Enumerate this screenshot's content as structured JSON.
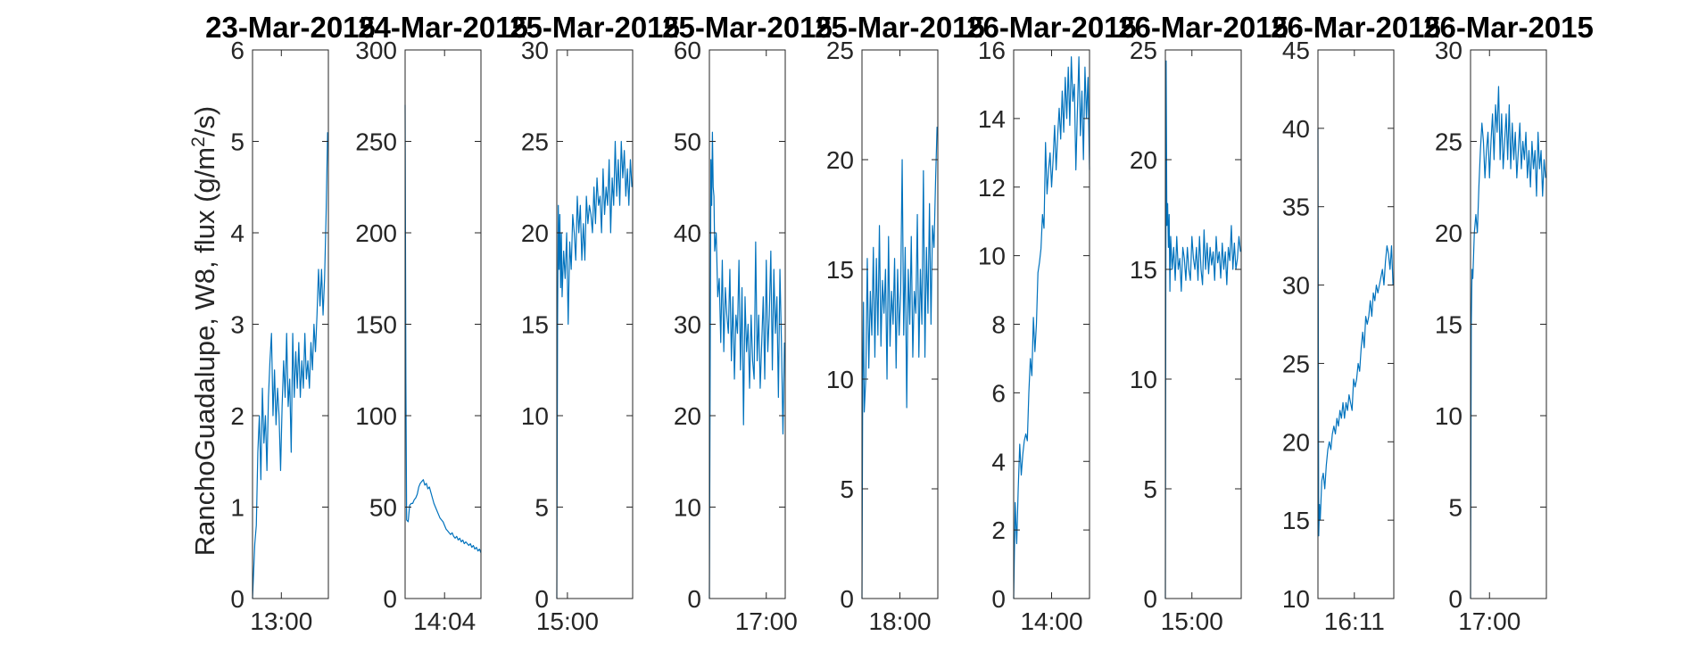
{
  "figure": {
    "ylabel_main": "RanchoGuadalupe, W8, flux (g/m",
    "ylabel_sup": "2",
    "ylabel_end": "/s)",
    "line_color": "#0072BD"
  },
  "chart_data": [
    {
      "type": "line",
      "title": "23-Mar-2015",
      "ylim": [
        0,
        6
      ],
      "yticks": [
        "0",
        "1",
        "2",
        "3",
        "4",
        "5",
        "6"
      ],
      "xlim": [
        0,
        100
      ],
      "xticks": [
        {
          "x": 38,
          "label": "13:00"
        }
      ],
      "x": [
        0,
        3,
        5,
        7,
        9,
        11,
        13,
        15,
        17,
        19,
        21,
        23,
        25,
        27,
        29,
        31,
        33,
        35,
        37,
        39,
        41,
        43,
        45,
        47,
        49,
        51,
        53,
        55,
        57,
        59,
        61,
        63,
        65,
        67,
        69,
        71,
        73,
        75,
        77,
        79,
        81,
        83,
        85,
        87,
        89,
        91,
        93,
        95,
        97,
        99
      ],
      "y": [
        0,
        0.6,
        0.8,
        1.6,
        2.0,
        1.3,
        2.3,
        1.7,
        2.0,
        1.4,
        2.2,
        2.6,
        2.9,
        2.0,
        2.5,
        1.9,
        2.3,
        2.0,
        1.4,
        2.1,
        2.6,
        2.2,
        2.9,
        2.1,
        2.4,
        1.6,
        2.9,
        2.2,
        2.7,
        2.3,
        2.8,
        2.2,
        2.6,
        2.3,
        2.9,
        2.4,
        2.6,
        2.3,
        2.8,
        2.5,
        3.0,
        2.7,
        3.1,
        3.6,
        3.2,
        3.6,
        3.1,
        3.5,
        4.2,
        5.1
      ]
    },
    {
      "type": "line",
      "title": "24-Mar-2015",
      "ylim": [
        0,
        300
      ],
      "yticks": [
        "0",
        "50",
        "100",
        "150",
        "200",
        "250",
        "300"
      ],
      "xlim": [
        0,
        100
      ],
      "xticks": [
        {
          "x": 52,
          "label": "14:04"
        }
      ],
      "x": [
        0,
        1,
        2,
        4,
        6,
        8,
        10,
        12,
        14,
        16,
        18,
        20,
        22,
        24,
        26,
        28,
        30,
        32,
        34,
        36,
        38,
        40,
        42,
        44,
        46,
        48,
        50,
        52,
        54,
        56,
        58,
        60,
        62,
        64,
        66,
        68,
        70,
        72,
        74,
        76,
        78,
        80,
        82,
        84,
        86,
        88,
        90,
        92,
        94,
        96,
        98,
        100
      ],
      "y": [
        270,
        120,
        43,
        42,
        51,
        52,
        52,
        54,
        55,
        57,
        61,
        63,
        64,
        65,
        62,
        63,
        60,
        61,
        58,
        55,
        52,
        50,
        48,
        46,
        44,
        43,
        42,
        40,
        38,
        37,
        36,
        35,
        36,
        34,
        33,
        34,
        32,
        33,
        31,
        32,
        30,
        31,
        30,
        29,
        30,
        28,
        29,
        27,
        28,
        26,
        27,
        25
      ]
    },
    {
      "type": "line",
      "title": "25-Mar-2015",
      "ylim": [
        0,
        30
      ],
      "yticks": [
        "0",
        "5",
        "10",
        "15",
        "20",
        "25",
        "30"
      ],
      "xlim": [
        0,
        100
      ],
      "xticks": [
        {
          "x": 14,
          "label": "15:00"
        }
      ],
      "x": [
        0,
        1,
        2,
        3,
        4,
        5,
        6,
        7,
        9,
        11,
        13,
        15,
        17,
        19,
        21,
        23,
        25,
        27,
        29,
        31,
        33,
        35,
        37,
        39,
        41,
        43,
        45,
        47,
        49,
        51,
        53,
        55,
        57,
        59,
        61,
        63,
        65,
        67,
        69,
        71,
        73,
        75,
        77,
        79,
        81,
        83,
        85,
        87,
        89,
        91,
        93,
        95,
        97,
        99
      ],
      "y": [
        0,
        15,
        21.5,
        18,
        21,
        17,
        20,
        16.5,
        19,
        17.5,
        20,
        15,
        19.5,
        18,
        21,
        20,
        18.5,
        22,
        20,
        21.5,
        18.5,
        20.5,
        18.5,
        22,
        20.5,
        21.5,
        21,
        20,
        22.5,
        20.5,
        23,
        21.5,
        22,
        20,
        23.5,
        21,
        22.5,
        21.5,
        24,
        20,
        23,
        21.5,
        25,
        22,
        24,
        21.5,
        25,
        23,
        24.5,
        22,
        23.5,
        21.5,
        24,
        22.5
      ]
    },
    {
      "type": "line",
      "title": "25-Mar-2015",
      "ylim": [
        0,
        60
      ],
      "yticks": [
        "0",
        "10",
        "20",
        "30",
        "40",
        "50",
        "60"
      ],
      "xlim": [
        0,
        100
      ],
      "xticks": [
        {
          "x": 75,
          "label": "17:00"
        }
      ],
      "x": [
        0,
        1,
        2,
        3,
        4,
        5,
        6,
        7,
        9,
        11,
        13,
        15,
        17,
        19,
        21,
        23,
        25,
        27,
        29,
        31,
        33,
        35,
        37,
        39,
        41,
        43,
        45,
        47,
        49,
        51,
        53,
        55,
        57,
        59,
        61,
        63,
        65,
        67,
        69,
        71,
        73,
        75,
        77,
        79,
        81,
        83,
        85,
        87,
        89,
        91,
        93,
        95,
        97,
        99
      ],
      "y": [
        0,
        25,
        48,
        43,
        51,
        45,
        44,
        38,
        40,
        33,
        35,
        28,
        37,
        27,
        34,
        31,
        29,
        36,
        26,
        33,
        24,
        31,
        29,
        37,
        25,
        34,
        19,
        33,
        27,
        30,
        23,
        31,
        26,
        24,
        39,
        26,
        31,
        23,
        28,
        33,
        24,
        37,
        27,
        31,
        38,
        25,
        36,
        29,
        33,
        22,
        36,
        28,
        18,
        28
      ]
    },
    {
      "type": "line",
      "title": "25-Mar-2015",
      "ylim": [
        0,
        25
      ],
      "yticks": [
        "0",
        "5",
        "10",
        "15",
        "20",
        "25"
      ],
      "xlim": [
        0,
        100
      ],
      "xticks": [
        {
          "x": 50,
          "label": "18:00"
        }
      ],
      "x": [
        0,
        1,
        2,
        3,
        5,
        7,
        9,
        11,
        13,
        15,
        17,
        19,
        21,
        23,
        25,
        27,
        29,
        31,
        33,
        35,
        37,
        39,
        41,
        43,
        45,
        47,
        49,
        51,
        53,
        55,
        57,
        59,
        61,
        63,
        65,
        67,
        69,
        71,
        73,
        75,
        77,
        79,
        81,
        83,
        85,
        87,
        89,
        91,
        93,
        95,
        97,
        99
      ],
      "y": [
        0,
        10,
        13.5,
        8.5,
        10,
        15.5,
        10.5,
        14,
        12,
        16,
        11,
        15.5,
        12,
        17,
        11.5,
        14.5,
        13,
        15,
        10,
        16.5,
        11.5,
        14,
        12.5,
        15.5,
        10.5,
        15,
        12,
        14,
        20,
        12,
        16,
        8.7,
        15,
        12.5,
        16.5,
        11,
        14,
        13,
        17.5,
        11,
        15,
        12.5,
        19.5,
        11,
        16,
        13,
        18,
        12.5,
        17,
        16,
        19,
        21.5
      ]
    },
    {
      "type": "line",
      "title": "26-Mar-2015",
      "ylim": [
        0,
        16
      ],
      "yticks": [
        "0",
        "2",
        "4",
        "6",
        "8",
        "10",
        "12",
        "14",
        "16"
      ],
      "xlim": [
        0,
        100
      ],
      "xticks": [
        {
          "x": 50,
          "label": "14:00"
        }
      ],
      "x": [
        0,
        2,
        4,
        6,
        8,
        10,
        12,
        14,
        16,
        18,
        20,
        22,
        24,
        26,
        28,
        30,
        32,
        34,
        36,
        38,
        40,
        42,
        44,
        46,
        48,
        50,
        52,
        54,
        56,
        58,
        60,
        62,
        64,
        66,
        68,
        70,
        72,
        74,
        76,
        78,
        80,
        82,
        84,
        86,
        88,
        90,
        92,
        94,
        96,
        98,
        100
      ],
      "y": [
        0,
        2.8,
        1.6,
        3.2,
        4.5,
        3.6,
        4.2,
        4.6,
        4.8,
        4.6,
        6.0,
        7.0,
        6.5,
        8.2,
        7.2,
        8.0,
        9.5,
        9.8,
        10.2,
        11.2,
        10.8,
        13.3,
        11.8,
        12.5,
        13.0,
        12.0,
        12.8,
        13.8,
        12.5,
        13.5,
        14.3,
        13.4,
        14.8,
        13.6,
        15.2,
        14.0,
        15.5,
        13.8,
        15.8,
        14.5,
        15.0,
        12.5,
        14.2,
        15.8,
        13.5,
        14.8,
        12.8,
        15.5,
        14.0,
        15.2,
        12.5
      ]
    },
    {
      "type": "line",
      "title": "26-Mar-2015",
      "ylim": [
        0,
        25
      ],
      "yticks": [
        "0",
        "5",
        "10",
        "15",
        "20",
        "25"
      ],
      "xlim": [
        0,
        100
      ],
      "xticks": [
        {
          "x": 35,
          "label": "15:00"
        }
      ],
      "x": [
        0,
        1,
        2,
        3,
        4,
        5,
        6,
        7,
        9,
        11,
        13,
        15,
        17,
        19,
        21,
        23,
        25,
        27,
        29,
        31,
        33,
        35,
        37,
        39,
        41,
        43,
        45,
        47,
        49,
        51,
        53,
        55,
        57,
        59,
        61,
        63,
        65,
        67,
        69,
        71,
        73,
        75,
        77,
        79,
        81,
        83,
        85,
        87,
        89,
        91,
        93,
        95,
        97,
        99
      ],
      "y": [
        0,
        24.5,
        17,
        18,
        16,
        17.5,
        14,
        16.5,
        15,
        16,
        14.5,
        16.5,
        15,
        15.5,
        14,
        16,
        15.5,
        14.5,
        16,
        15,
        14.5,
        16.5,
        15.5,
        15,
        16,
        14.5,
        16.5,
        15,
        14.3,
        16.8,
        15,
        16.2,
        14.8,
        16,
        15.2,
        15.8,
        14.5,
        16.5,
        15.3,
        15.8,
        14.6,
        16.2,
        15,
        15.8,
        14.3,
        16,
        15.4,
        17,
        15,
        16.2,
        15,
        15.5,
        16.5,
        15.8
      ]
    },
    {
      "type": "line",
      "title": "26-Mar-2015",
      "ylim": [
        10,
        45
      ],
      "yticks": [
        "10",
        "15",
        "20",
        "25",
        "30",
        "35",
        "40",
        "45"
      ],
      "xlim": [
        0,
        100
      ],
      "xticks": [
        {
          "x": 48,
          "label": "16:11"
        }
      ],
      "x": [
        0,
        1,
        2,
        3,
        5,
        7,
        9,
        11,
        13,
        15,
        17,
        19,
        21,
        23,
        25,
        27,
        29,
        31,
        33,
        35,
        37,
        39,
        41,
        43,
        45,
        47,
        49,
        51,
        53,
        55,
        57,
        59,
        61,
        63,
        65,
        67,
        69,
        71,
        73,
        75,
        77,
        79,
        81,
        83,
        85,
        87,
        89,
        91,
        93,
        95,
        97,
        99
      ],
      "y": [
        40,
        14,
        16,
        15,
        17.5,
        18,
        17,
        18.5,
        19.5,
        20,
        19.5,
        20.5,
        21,
        20.5,
        21.5,
        21,
        22,
        21.5,
        22.5,
        21.5,
        22.5,
        22,
        23,
        22.5,
        22,
        24,
        23.5,
        24,
        25,
        24.5,
        26,
        27,
        26,
        28,
        27.5,
        28,
        29,
        28,
        29.5,
        29,
        30,
        29.5,
        30,
        30.5,
        31,
        30,
        31.5,
        32.5,
        32,
        31,
        32.5,
        30
      ]
    },
    {
      "type": "line",
      "title": "26-Mar-2015",
      "ylim": [
        0,
        30
      ],
      "yticks": [
        "0",
        "5",
        "10",
        "15",
        "20",
        "25",
        "30"
      ],
      "xlim": [
        0,
        100
      ],
      "xticks": [
        {
          "x": 25,
          "label": "17:00"
        }
      ],
      "x": [
        0,
        1,
        2,
        3,
        5,
        7,
        9,
        11,
        13,
        15,
        17,
        19,
        21,
        23,
        25,
        27,
        29,
        31,
        33,
        35,
        37,
        39,
        41,
        43,
        45,
        47,
        49,
        51,
        53,
        55,
        57,
        59,
        61,
        63,
        65,
        67,
        69,
        71,
        73,
        75,
        77,
        79,
        81,
        83,
        85,
        87,
        89,
        91,
        93,
        95,
        97,
        99
      ],
      "y": [
        0,
        15,
        18,
        17.5,
        20,
        21,
        20,
        22.5,
        24.5,
        26,
        25,
        23,
        24.5,
        25.5,
        23,
        25,
        26.5,
        24,
        27,
        25.5,
        28,
        24,
        26.5,
        23.5,
        25,
        26.5,
        24,
        27,
        23.5,
        26,
        24,
        25.5,
        23,
        24.5,
        26,
        23.5,
        25,
        24,
        25.5,
        23,
        24.5,
        22.5,
        25,
        23.5,
        24.5,
        22,
        25.5,
        23.5,
        24.5,
        22,
        24,
        23
      ]
    }
  ]
}
